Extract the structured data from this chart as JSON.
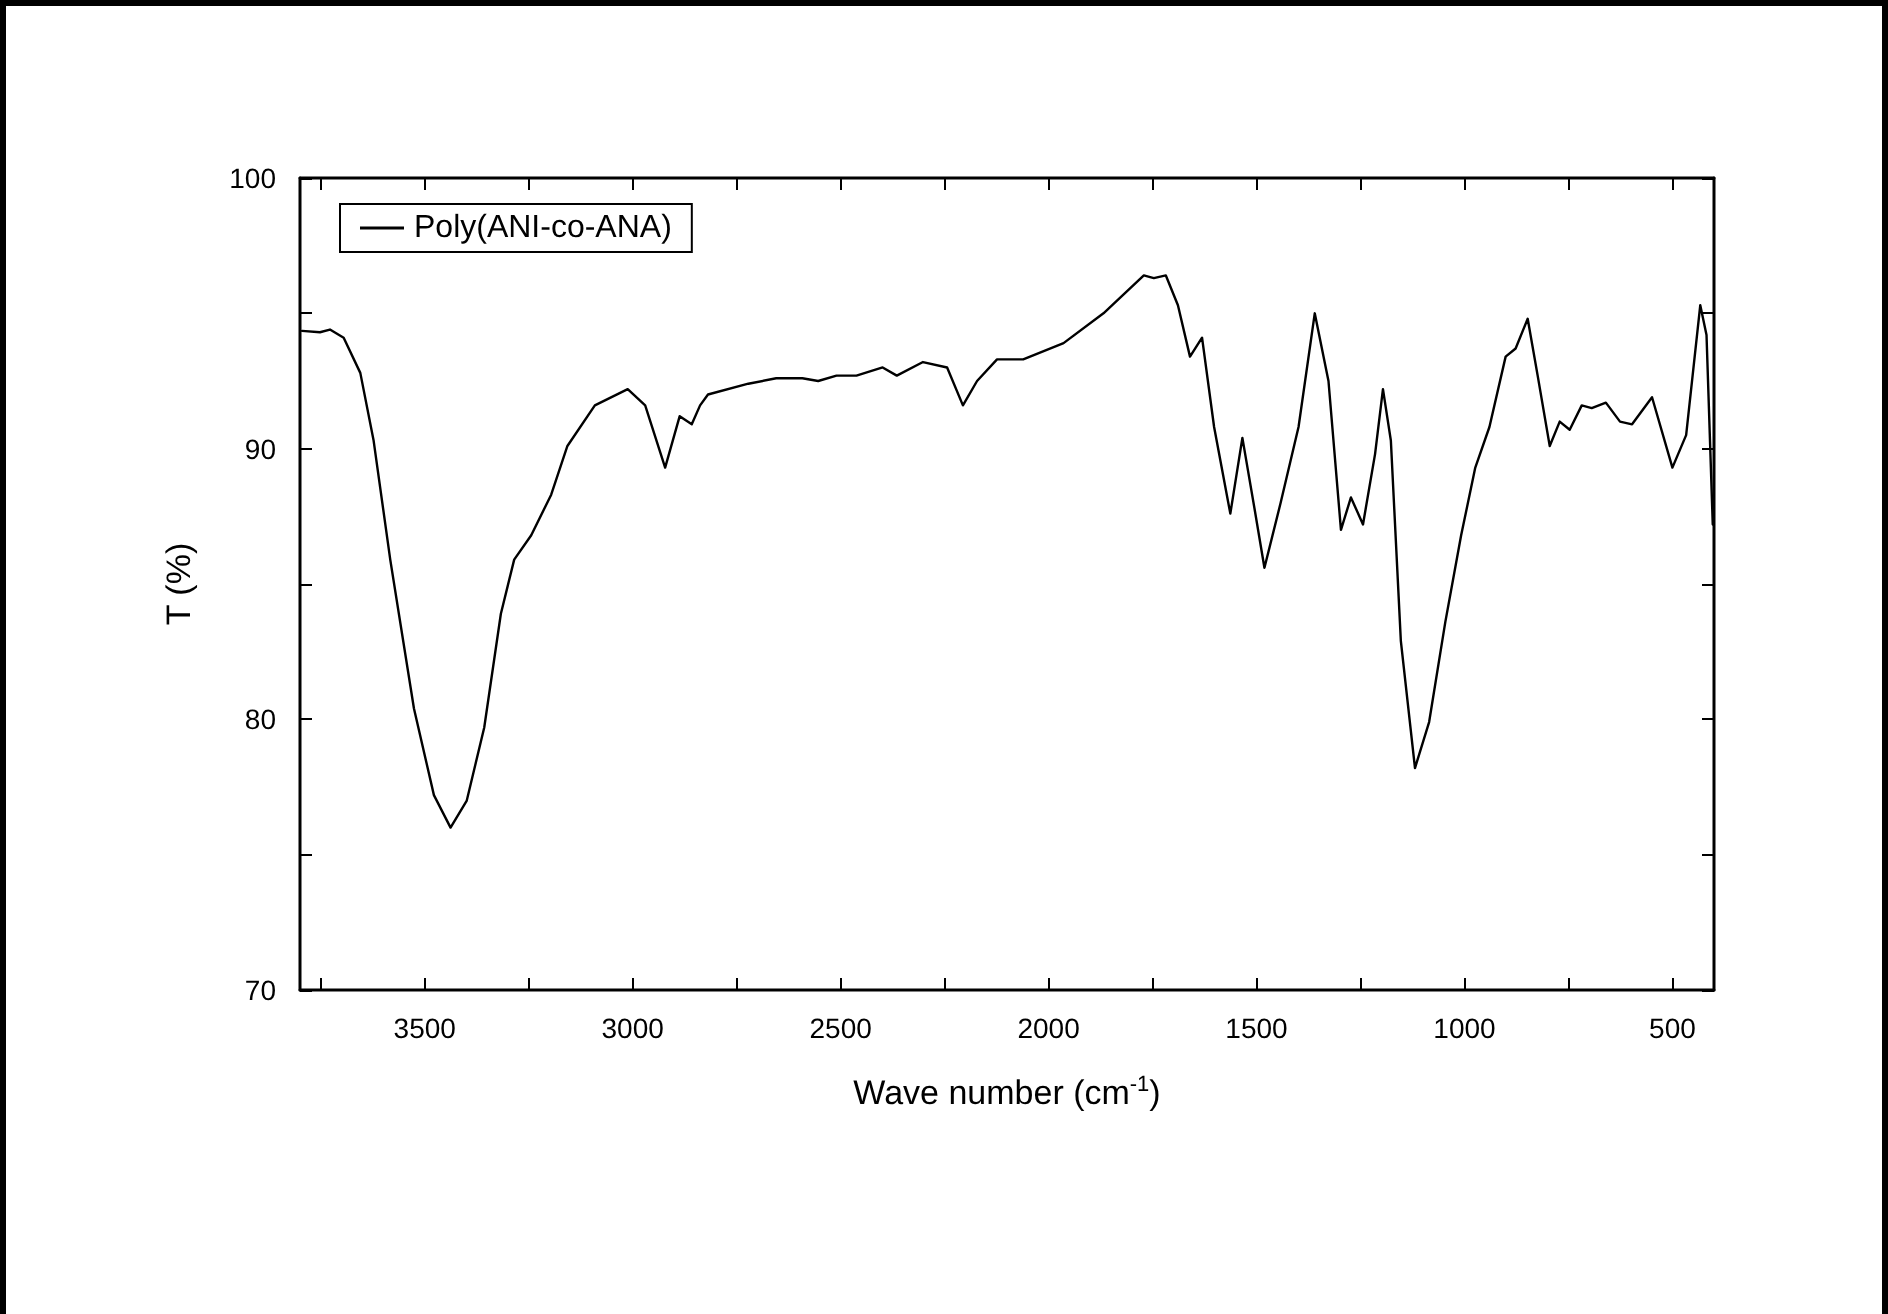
{
  "chart_data": {
    "type": "line",
    "xlabel": "Wave number (cm$^{-1}$)",
    "ylabel": "T (%)",
    "xlim": [
      3800,
      400
    ],
    "ylim": [
      70,
      100
    ],
    "xticks": [
      {
        "value": 3750,
        "label": null
      },
      3500,
      {
        "value": 3250,
        "label": null
      },
      3000,
      {
        "value": 2750,
        "label": null
      },
      2500,
      {
        "value": 2250,
        "label": null
      },
      2000,
      {
        "value": 1750,
        "label": null
      },
      1500,
      {
        "value": 1250,
        "label": null
      },
      1000,
      {
        "value": 750,
        "label": null
      },
      500
    ],
    "yticks": [
      70,
      {
        "value": 75,
        "label": null
      },
      80,
      {
        "value": 85,
        "label": null
      },
      90,
      {
        "value": 95,
        "label": null
      },
      100
    ],
    "grid": false,
    "legend": "top left",
    "marker": "none",
    "line_style": "solid",
    "series": [
      {
        "name": "Poly(ANI-co-ANA)",
        "color": "#000000",
        "x": [
          3795,
          3752,
          3728,
          3695,
          3655,
          3623,
          3583,
          3526,
          3478,
          3438,
          3399,
          3357,
          3317,
          3285,
          3244,
          3196,
          3157,
          3091,
          3012,
          2970,
          2922,
          2887,
          2858,
          2838,
          2819,
          2722,
          2655,
          2592,
          2554,
          2510,
          2462,
          2399,
          2365,
          2302,
          2244,
          2206,
          2172,
          2124,
          2061,
          1964,
          1868,
          1771,
          1747,
          1718,
          1689,
          1660,
          1631,
          1602,
          1563,
          1534,
          1505,
          1481,
          1442,
          1399,
          1360,
          1327,
          1297,
          1273,
          1244,
          1215,
          1196,
          1177,
          1153,
          1119,
          1085,
          1046,
          1008,
          974,
          940,
          901,
          877,
          848,
          824,
          795,
          771,
          747,
          718,
          694,
          660,
          626,
          597,
          549,
          500,
          467,
          433,
          418,
          403
        ],
        "values": [
          94.35,
          94.3,
          94.4,
          94.1,
          92.8,
          90.3,
          85.9,
          80.4,
          77.2,
          76.0,
          77.0,
          79.7,
          83.9,
          85.9,
          86.8,
          88.3,
          90.1,
          91.6,
          92.2,
          91.6,
          89.3,
          91.2,
          90.9,
          91.6,
          92.0,
          92.4,
          92.6,
          92.6,
          92.5,
          92.7,
          92.7,
          93.0,
          92.7,
          93.2,
          93.0,
          91.6,
          92.5,
          93.3,
          93.3,
          93.9,
          95.0,
          96.4,
          96.3,
          96.4,
          95.3,
          93.4,
          94.1,
          90.8,
          87.6,
          90.4,
          87.8,
          85.6,
          88.0,
          90.8,
          95.0,
          92.5,
          87.0,
          88.2,
          87.2,
          89.8,
          92.2,
          90.3,
          82.9,
          78.2,
          79.9,
          83.6,
          86.8,
          89.3,
          90.8,
          93.4,
          93.7,
          94.8,
          92.7,
          90.1,
          91.0,
          90.7,
          91.6,
          91.5,
          91.7,
          91.0,
          90.9,
          91.9,
          89.3,
          90.5,
          95.3,
          94.2,
          87.2
        ]
      }
    ]
  }
}
